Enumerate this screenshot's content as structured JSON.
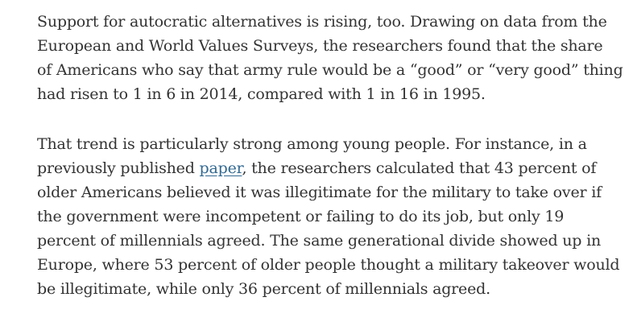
{
  "article": {
    "paragraph_1": {
      "lines": [
        "Support for autocratic alternatives is rising, too. Drawing on data from the",
        "European and World Values Surveys, the researchers found that the share",
        "of Americans who say that army rule would be a “good” or “very good” thing",
        "had risen to 1 in 6 in 2014, compared with 1 in 16 in 1995."
      ]
    },
    "paragraph_2": {
      "line_1": "That trend is particularly strong among young people. For instance, in a",
      "line_2_before_link": "previously published ",
      "link_text": "paper",
      "line_2_after_link": ", the researchers calculated that 43 percent of",
      "lines_rest": [
        "older Americans believed it was illegitimate for the military to take over if",
        "the government were incompetent or failing to do its job, but only 19",
        "percent of millennials agreed. The same generational divide showed up in",
        "Europe, where 53 percent of older people thought a military takeover would",
        "be illegitimate, while only 36 percent of millennials agreed."
      ]
    },
    "link_color": "#326891",
    "text_color": "#333333"
  }
}
